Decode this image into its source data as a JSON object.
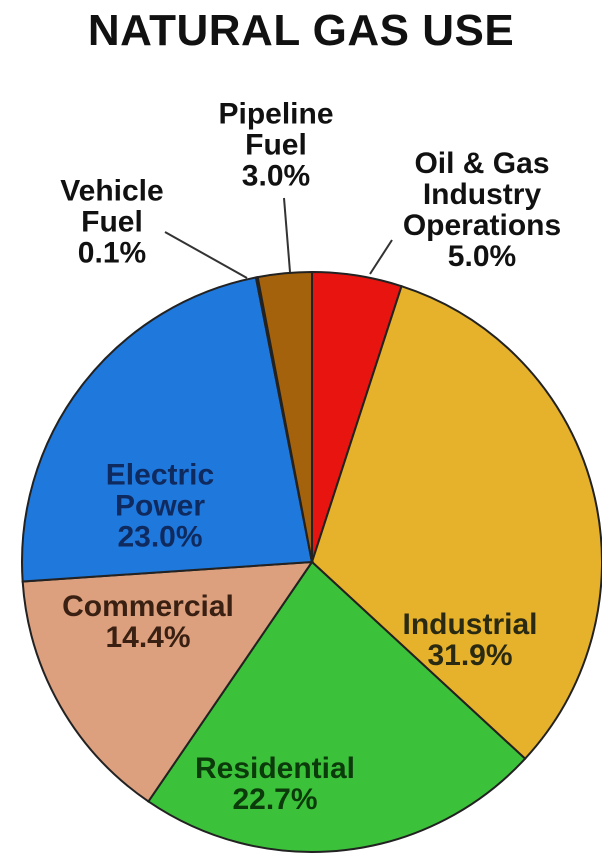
{
  "chart_data": {
    "type": "pie",
    "title": "NATURAL GAS USE",
    "categories": [
      "Oil & Gas Industry Operations",
      "Industrial",
      "Residential",
      "Commercial",
      "Electric Power",
      "Vehicle Fuel",
      "Pipeline Fuel"
    ],
    "values": [
      5.0,
      31.9,
      22.7,
      14.4,
      23.0,
      0.1,
      3.0
    ],
    "value_labels": [
      "5.0%",
      "31.9%",
      "22.7%",
      "14.4%",
      "23.0%",
      "0.1%",
      "3.0%"
    ],
    "colors": [
      "#e8140f",
      "#e6b22c",
      "#3cc23a",
      "#dca07e",
      "#1f78dc",
      "#ffff10",
      "#a5620c"
    ]
  }
}
